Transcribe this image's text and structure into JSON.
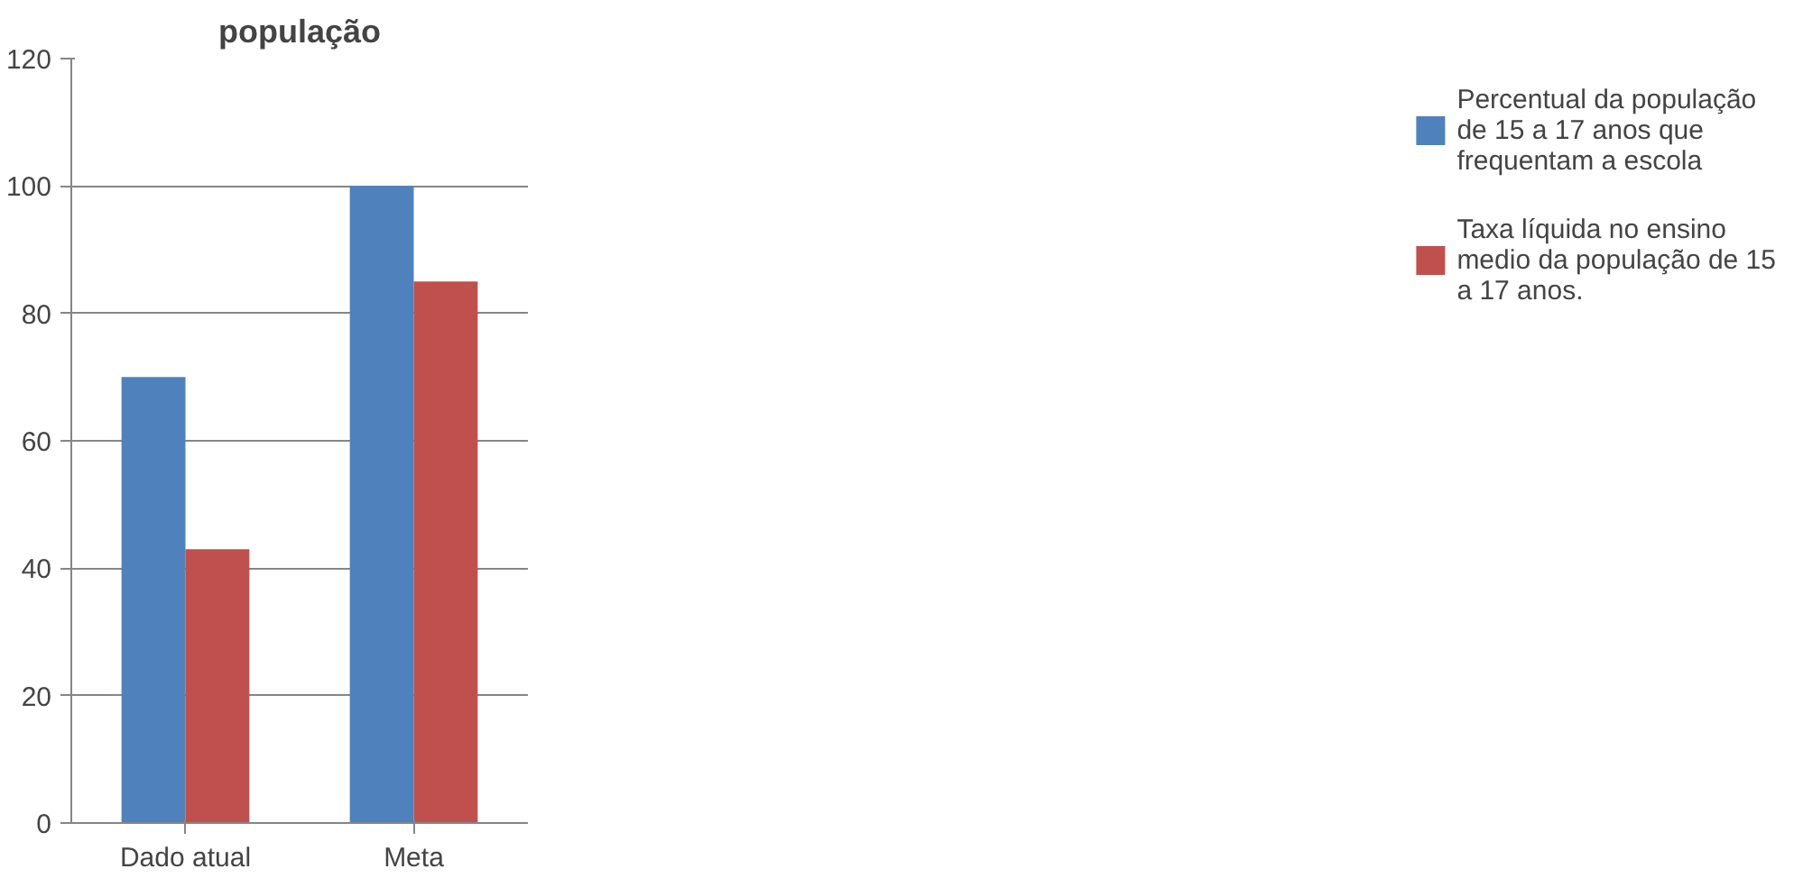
{
  "chart_data": {
    "type": "bar",
    "title": "população",
    "categories": [
      "Dado atual",
      "Meta"
    ],
    "series": [
      {
        "name": "Percentual da população de 15 a 17 anos que frequentam a escola",
        "color": "#4f81bd",
        "values": [
          70,
          100
        ]
      },
      {
        "name": "Taxa líquida no ensino medio da população de 15 a 17 anos.",
        "color": "#c0504d",
        "values": [
          43,
          85
        ]
      }
    ],
    "ylim": [
      0,
      120
    ],
    "yticks": [
      0,
      20,
      40,
      60,
      80,
      100,
      120
    ],
    "grid": "y",
    "legend": "right"
  }
}
